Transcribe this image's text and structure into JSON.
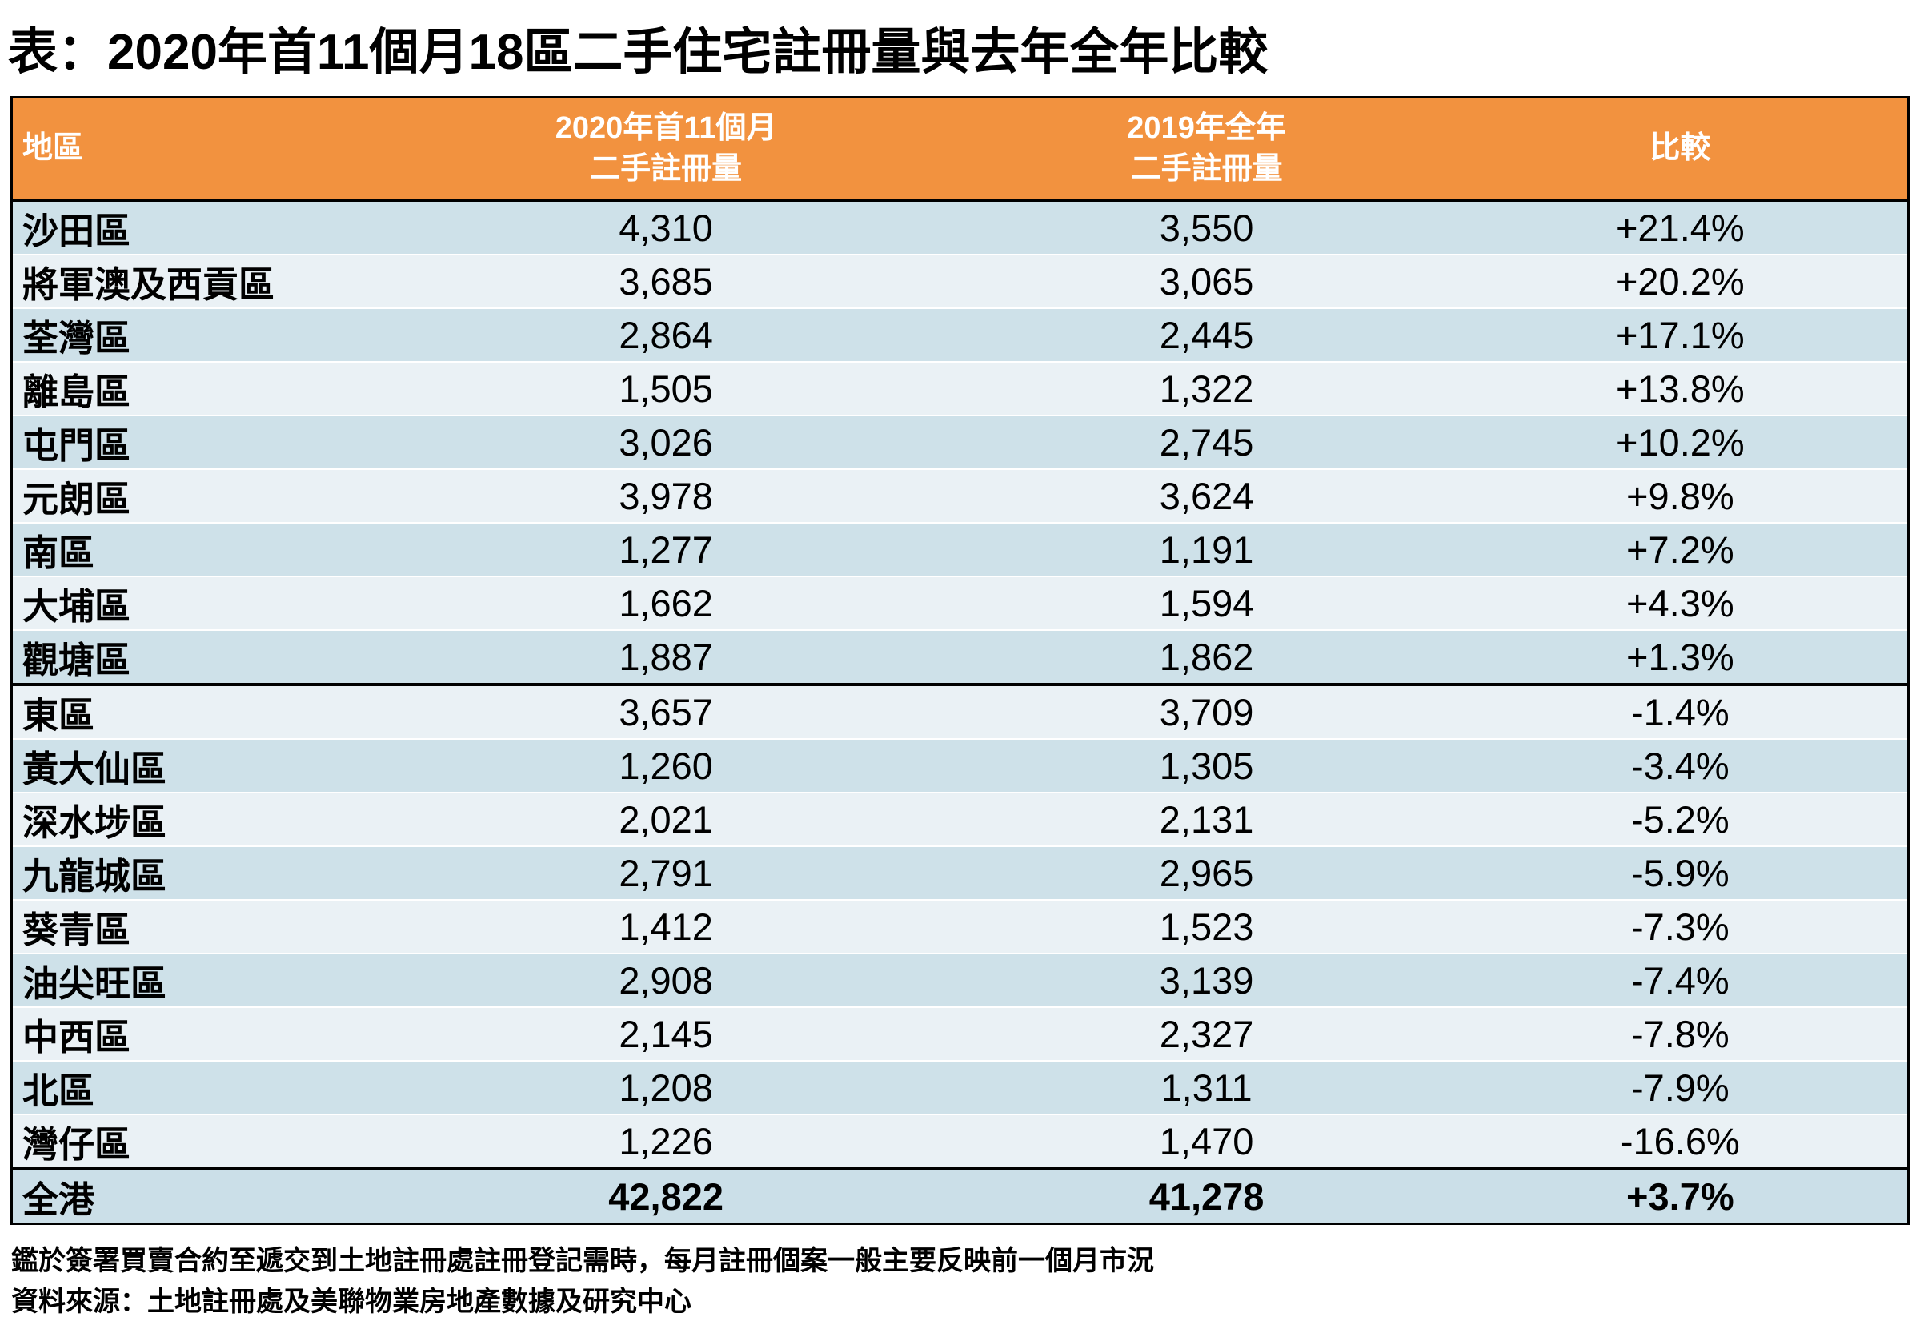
{
  "title": "表：2020年首11個月18區二手住宅註冊量與去年全年比較",
  "colors": {
    "header_bg": "#F2923F",
    "header_text": "#FFFFFF",
    "row_dark": "#CEE1E9",
    "row_light": "#EAF1F5",
    "total_row_bg": "#CBDFE8",
    "border": "#000000"
  },
  "table": {
    "header": {
      "district": "地區",
      "y2020_line1": "2020年首11個月",
      "y2020_line2": "二手註冊量",
      "y2019_line1": "2019年全年",
      "y2019_line2": "二手註冊量",
      "compare": "比較"
    },
    "rows": [
      {
        "district": "沙田區",
        "y2020": "4,310",
        "y2019": "3,550",
        "change": "+21.4%"
      },
      {
        "district": "將軍澳及西貢區",
        "y2020": "3,685",
        "y2019": "3,065",
        "change": "+20.2%"
      },
      {
        "district": "荃灣區",
        "y2020": "2,864",
        "y2019": "2,445",
        "change": "+17.1%"
      },
      {
        "district": "離島區",
        "y2020": "1,505",
        "y2019": "1,322",
        "change": "+13.8%"
      },
      {
        "district": "屯門區",
        "y2020": "3,026",
        "y2019": "2,745",
        "change": "+10.2%"
      },
      {
        "district": "元朗區",
        "y2020": "3,978",
        "y2019": "3,624",
        "change": "+9.8%"
      },
      {
        "district": "南區",
        "y2020": "1,277",
        "y2019": "1,191",
        "change": "+7.2%"
      },
      {
        "district": "大埔區",
        "y2020": "1,662",
        "y2019": "1,594",
        "change": "+4.3%"
      },
      {
        "district": "觀塘區",
        "y2020": "1,887",
        "y2019": "1,862",
        "change": "+1.3%"
      },
      {
        "district": "東區",
        "y2020": "3,657",
        "y2019": "3,709",
        "change": "-1.4%"
      },
      {
        "district": "黃大仙區",
        "y2020": "1,260",
        "y2019": "1,305",
        "change": "-3.4%"
      },
      {
        "district": "深水埗區",
        "y2020": "2,021",
        "y2019": "2,131",
        "change": "-5.2%"
      },
      {
        "district": "九龍城區",
        "y2020": "2,791",
        "y2019": "2,965",
        "change": "-5.9%"
      },
      {
        "district": "葵青區",
        "y2020": "1,412",
        "y2019": "1,523",
        "change": "-7.3%"
      },
      {
        "district": "油尖旺區",
        "y2020": "2,908",
        "y2019": "3,139",
        "change": "-7.4%"
      },
      {
        "district": "中西區",
        "y2020": "2,145",
        "y2019": "2,327",
        "change": "-7.8%"
      },
      {
        "district": "北區",
        "y2020": "1,208",
        "y2019": "1,311",
        "change": "-7.9%"
      },
      {
        "district": "灣仔區",
        "y2020": "1,226",
        "y2019": "1,470",
        "change": "-16.6%"
      }
    ],
    "total": {
      "district": "全港",
      "y2020": "42,822",
      "y2019": "41,278",
      "change": "+3.7%"
    }
  },
  "notes": {
    "line1": "鑑於簽署買賣合約至遞交到土地註冊處註冊登記需時，每月註冊個案一般主要反映前一個月市況",
    "line2": "資料來源：土地註冊處及美聯物業房地產數據及研究中心"
  },
  "chart_data": {
    "type": "table",
    "title": "表：2020年首11個月18區二手住宅註冊量與去年全年比較",
    "columns": [
      "地區",
      "2020年首11個月二手註冊量",
      "2019年全年二手註冊量",
      "比較"
    ],
    "rows": [
      [
        "沙田區",
        4310,
        3550,
        "+21.4%"
      ],
      [
        "將軍澳及西貢區",
        3685,
        3065,
        "+20.2%"
      ],
      [
        "荃灣區",
        2864,
        2445,
        "+17.1%"
      ],
      [
        "離島區",
        1505,
        1322,
        "+13.8%"
      ],
      [
        "屯門區",
        3026,
        2745,
        "+10.2%"
      ],
      [
        "元朗區",
        3978,
        3624,
        "+9.8%"
      ],
      [
        "南區",
        1277,
        1191,
        "+7.2%"
      ],
      [
        "大埔區",
        1662,
        1594,
        "+4.3%"
      ],
      [
        "觀塘區",
        1887,
        1862,
        "+1.3%"
      ],
      [
        "東區",
        3657,
        3709,
        "-1.4%"
      ],
      [
        "黃大仙區",
        1260,
        1305,
        "-3.4%"
      ],
      [
        "深水埗區",
        2021,
        2131,
        "-5.2%"
      ],
      [
        "九龍城區",
        2791,
        2965,
        "-5.9%"
      ],
      [
        "葵青區",
        1412,
        1523,
        "-7.3%"
      ],
      [
        "油尖旺區",
        2908,
        3139,
        "-7.4%"
      ],
      [
        "中西區",
        2145,
        2327,
        "-7.8%"
      ],
      [
        "北區",
        1208,
        1311,
        "-7.9%"
      ],
      [
        "灣仔區",
        1226,
        1470,
        "-16.6%"
      ]
    ],
    "total_row": [
      "全港",
      42822,
      41278,
      "+3.7%"
    ],
    "group_break_after_row": 9,
    "notes": [
      "鑑於簽署買賣合約至遞交到土地註冊處註冊登記需時，每月註冊個案一般主要反映前一個月市況",
      "資料來源：土地註冊處及美聯物業房地產數據及研究中心"
    ]
  }
}
